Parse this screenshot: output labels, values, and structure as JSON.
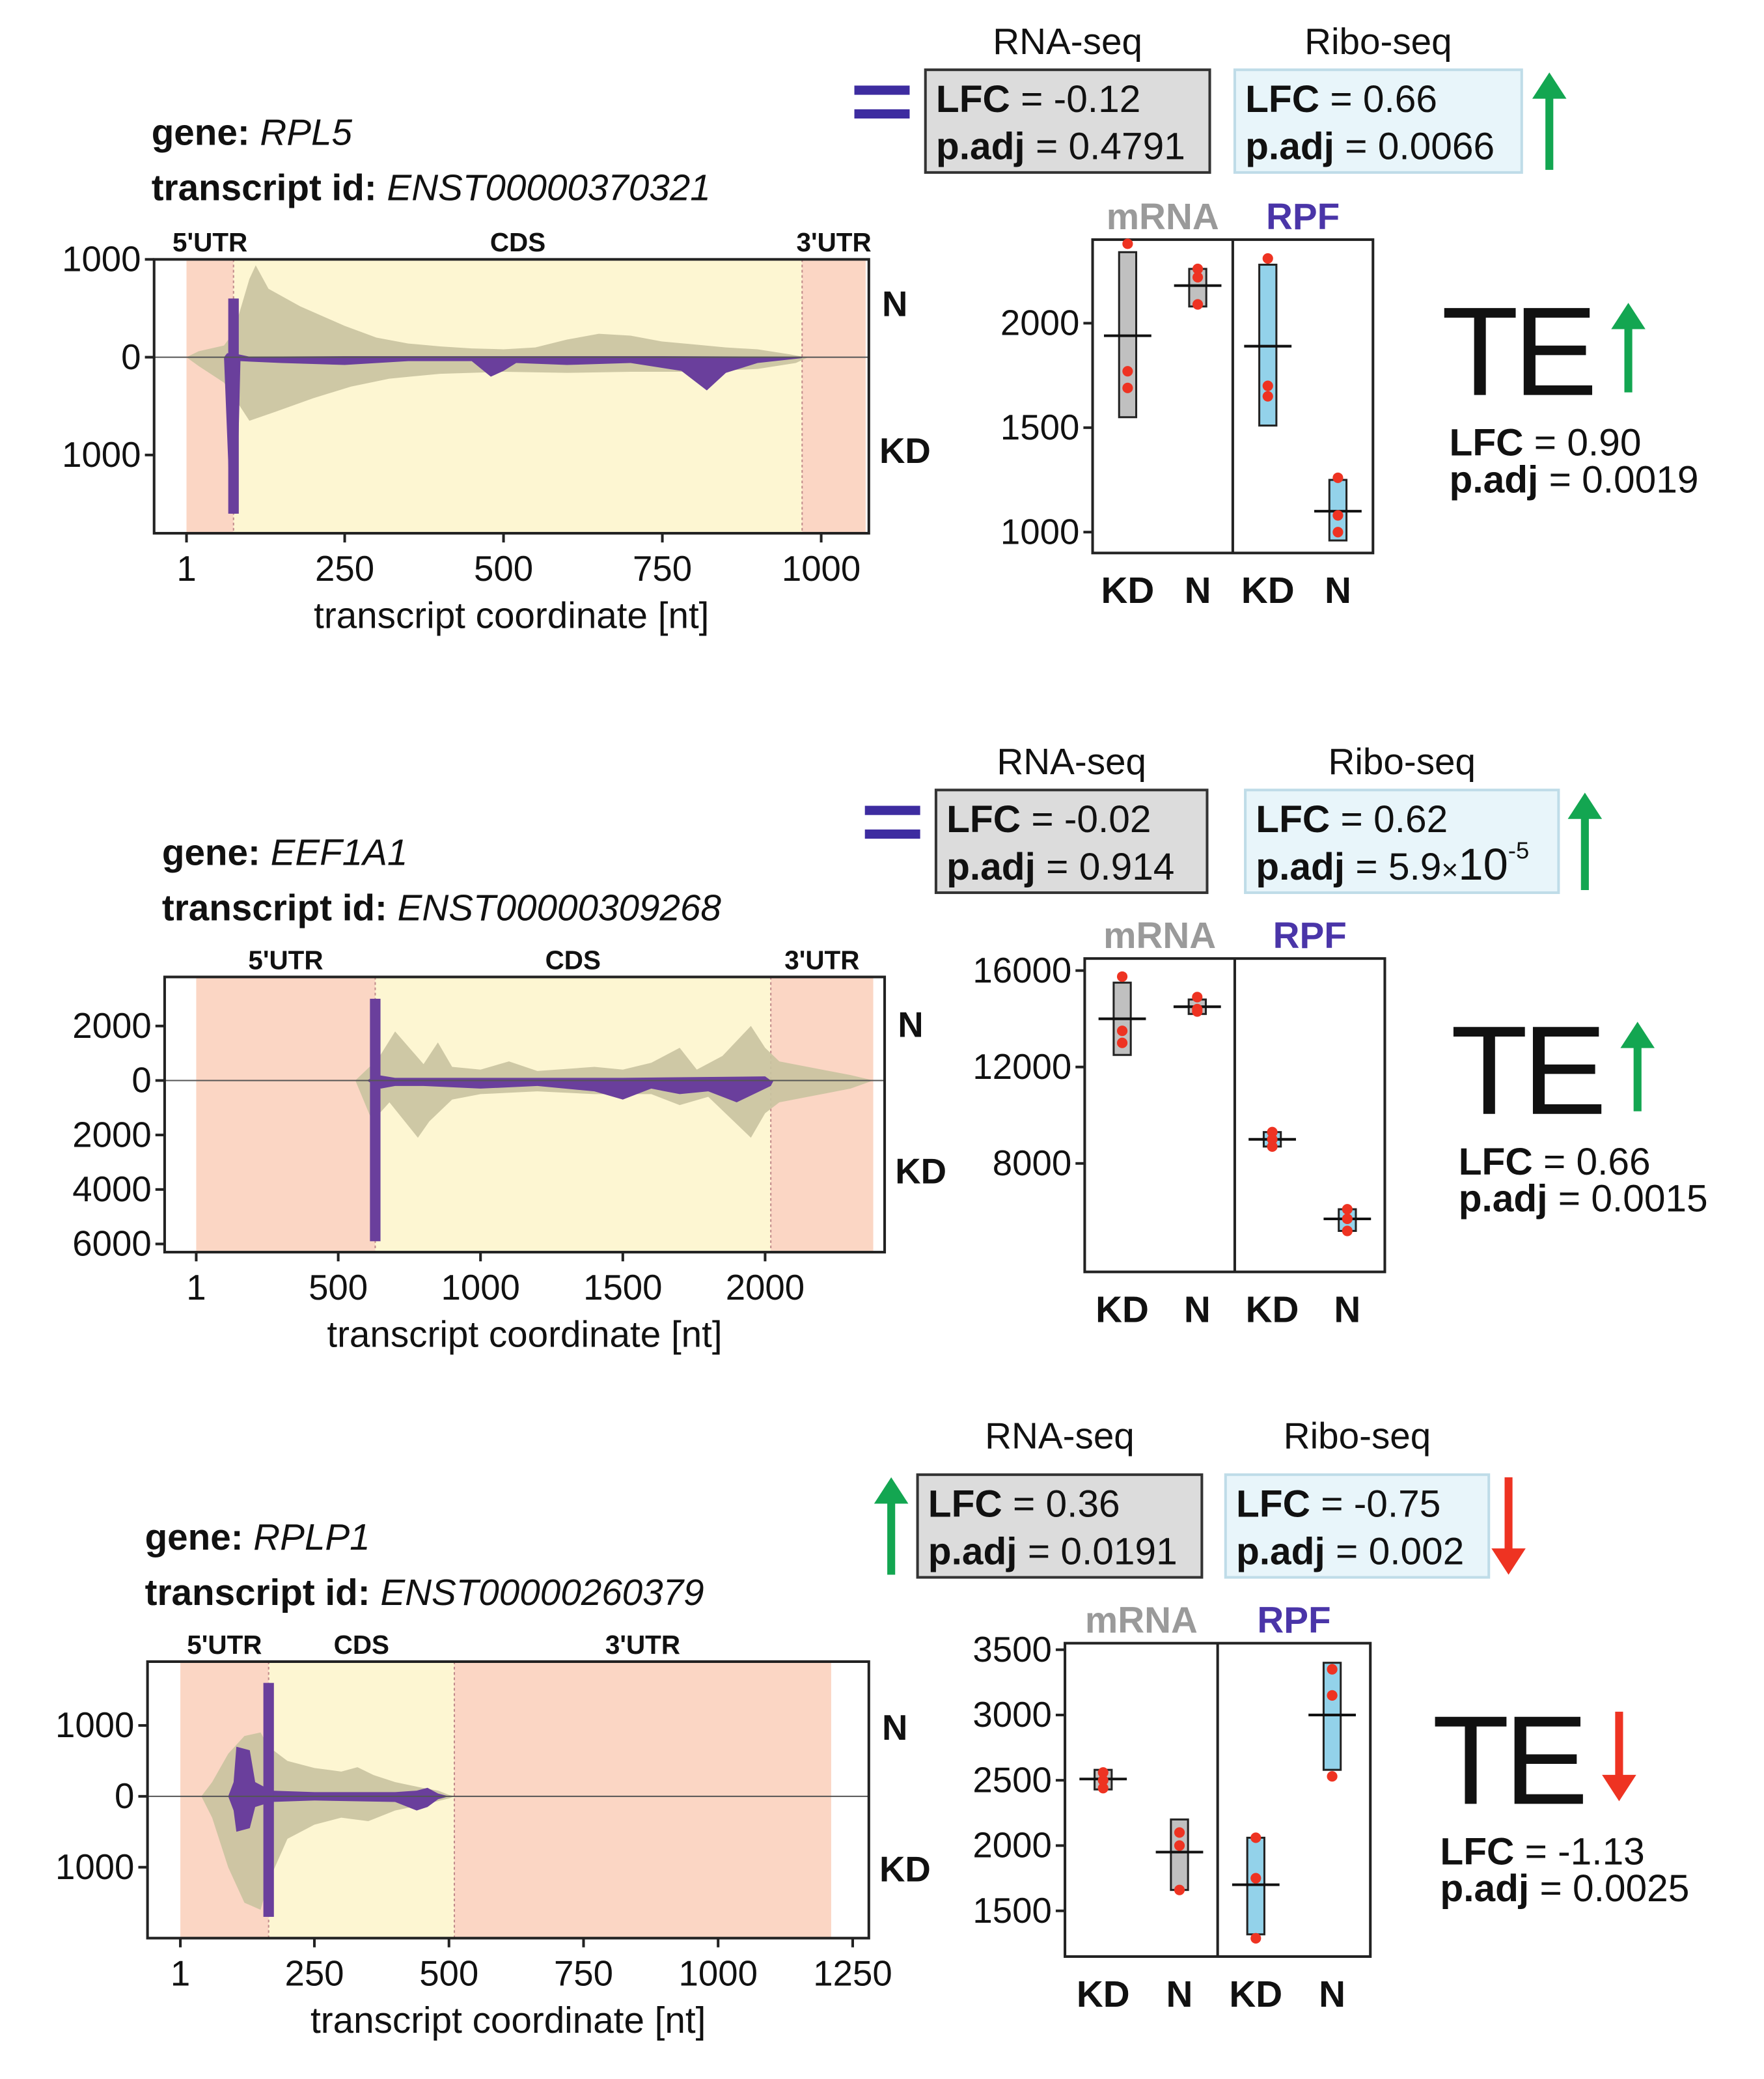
{
  "colors": {
    "utr": "#fbd6c4",
    "cds": "#fdf6d2",
    "rna_profile": "#c9c3a0",
    "utr_profile": "#d4a196",
    "ribo_profile": "#6a3f9c",
    "mrna_box": "#c0c0c0",
    "rpf_box": "#93d2ea",
    "replicate_dot": "#ee3322",
    "up_arrow": "#13a651",
    "down_arrow": "#ee3322",
    "equal_sign": "#3d2ca0",
    "rpf_label": "#4a35a8",
    "mrna_label": "#9a9a9a",
    "rna_stat_box": "#dcdcdc",
    "ribo_stat_box": "#e8f5fa"
  },
  "chart_data": [
    {
      "type": "area",
      "gene_label": "gene:",
      "gene": "RPL5",
      "transcript_label": "transcript id:",
      "transcript": "ENST00000370321",
      "regions": [
        {
          "label": "5'UTR",
          "start": 1,
          "end": 75
        },
        {
          "label": "CDS",
          "start": 75,
          "end": 970
        },
        {
          "label": "3'UTR",
          "start": 970,
          "end": 1070
        }
      ],
      "xlim": [
        -50,
        1075
      ],
      "xticks": [
        1,
        250,
        500,
        750,
        1000
      ],
      "xlabel": "transcript coordinate [nt]",
      "ylim": [
        -1800,
        1000
      ],
      "yticks": [
        {
          "value": 1000,
          "label": "1000"
        },
        {
          "value": 0,
          "label": "0"
        },
        {
          "value": -1000,
          "label": "1000"
        }
      ],
      "top_label": "N",
      "bottom_label": "KD",
      "rna_top": [
        [
          1,
          0
        ],
        [
          20,
          60
        ],
        [
          60,
          120
        ],
        [
          75,
          250
        ],
        [
          100,
          800
        ],
        [
          110,
          940
        ],
        [
          130,
          700
        ],
        [
          180,
          520
        ],
        [
          250,
          320
        ],
        [
          300,
          200
        ],
        [
          350,
          140
        ],
        [
          400,
          110
        ],
        [
          450,
          90
        ],
        [
          500,
          80
        ],
        [
          550,
          100
        ],
        [
          600,
          180
        ],
        [
          650,
          240
        ],
        [
          700,
          220
        ],
        [
          750,
          160
        ],
        [
          800,
          130
        ],
        [
          850,
          100
        ],
        [
          900,
          80
        ],
        [
          950,
          30
        ],
        [
          970,
          5
        ],
        [
          980,
          0
        ]
      ],
      "rna_bottom": [
        [
          1,
          0
        ],
        [
          20,
          -90
        ],
        [
          60,
          -260
        ],
        [
          75,
          -400
        ],
        [
          100,
          -650
        ],
        [
          140,
          -560
        ],
        [
          200,
          -420
        ],
        [
          260,
          -300
        ],
        [
          320,
          -220
        ],
        [
          400,
          -170
        ],
        [
          500,
          -150
        ],
        [
          600,
          -160
        ],
        [
          700,
          -150
        ],
        [
          800,
          -150
        ],
        [
          900,
          -120
        ],
        [
          960,
          -60
        ],
        [
          980,
          0
        ]
      ],
      "ribo_top": [
        [
          60,
          0
        ],
        [
          65,
          40
        ],
        [
          75,
          40
        ],
        [
          100,
          5
        ],
        [
          250,
          10
        ],
        [
          500,
          10
        ],
        [
          750,
          10
        ],
        [
          970,
          5
        ]
      ],
      "ribo_bottom": [
        [
          60,
          0
        ],
        [
          70,
          -1600
        ],
        [
          80,
          -1600
        ],
        [
          86,
          -40
        ],
        [
          150,
          -60
        ],
        [
          250,
          -80
        ],
        [
          350,
          -40
        ],
        [
          450,
          -40
        ],
        [
          480,
          -200
        ],
        [
          500,
          -140
        ],
        [
          520,
          -60
        ],
        [
          600,
          -80
        ],
        [
          700,
          -60
        ],
        [
          780,
          -140
        ],
        [
          820,
          -340
        ],
        [
          850,
          -160
        ],
        [
          900,
          -60
        ],
        [
          970,
          -10
        ]
      ],
      "spike": {
        "x": 75,
        "top": 600,
        "bottom": -1600
      },
      "rna_seq": {
        "title": "RNA-seq",
        "lfc": "-0.12",
        "padj": "0.4791",
        "direction": "equal"
      },
      "ribo_seq": {
        "title": "Ribo-seq",
        "lfc": "0.66",
        "padj": "0.0066",
        "direction": "up"
      },
      "boxes": {
        "ylim": [
          900,
          2400
        ],
        "yticks": [
          1000,
          1500,
          2000
        ],
        "mrna_label": "mRNA",
        "rpf_label": "RPF",
        "groups": [
          {
            "label": "KD",
            "panel": "mRNA",
            "min": 1550,
            "max": 2340,
            "mean": 1940,
            "points": [
              2380,
              1690,
              1770
            ]
          },
          {
            "label": "N",
            "panel": "mRNA",
            "min": 2080,
            "max": 2260,
            "mean": 2180,
            "points": [
              2260,
              2220,
              2090
            ]
          },
          {
            "label": "KD",
            "panel": "RPF",
            "min": 1510,
            "max": 2280,
            "mean": 1890,
            "points": [
              2310,
              1700,
              1650
            ]
          },
          {
            "label": "N",
            "panel": "RPF",
            "min": 960,
            "max": 1250,
            "mean": 1100,
            "points": [
              1260,
              1080,
              1000
            ]
          }
        ]
      },
      "te": {
        "label": "TE",
        "lfc": "0.90",
        "padj": "0.0019",
        "direction": "up"
      }
    },
    {
      "type": "area",
      "gene_label": "gene:",
      "gene": "EEF1A1",
      "transcript_label": "transcript id:",
      "transcript": "ENST00000309268",
      "regions": [
        {
          "label": "5'UTR",
          "start": 1,
          "end": 630
        },
        {
          "label": "CDS",
          "start": 630,
          "end": 2020
        },
        {
          "label": "3'UTR",
          "start": 2020,
          "end": 2380
        }
      ],
      "xlim": [
        -110,
        2420
      ],
      "xticks": [
        1,
        500,
        1000,
        1500,
        2000
      ],
      "xlabel": "transcript coordinate [nt]",
      "ylim": [
        -6300,
        3800
      ],
      "yticks": [
        {
          "value": 2000,
          "label": "2000"
        },
        {
          "value": 0,
          "label": "0"
        },
        {
          "value": -2000,
          "label": "2000"
        },
        {
          "value": -4000,
          "label": "4000"
        },
        {
          "value": -6000,
          "label": "6000"
        }
      ],
      "top_label": "N",
      "bottom_label": "KD",
      "rna_top": [
        [
          560,
          0
        ],
        [
          600,
          400
        ],
        [
          640,
          800
        ],
        [
          700,
          1800
        ],
        [
          750,
          1200
        ],
        [
          800,
          600
        ],
        [
          850,
          1400
        ],
        [
          900,
          500
        ],
        [
          1000,
          400
        ],
        [
          1100,
          700
        ],
        [
          1200,
          350
        ],
        [
          1400,
          500
        ],
        [
          1500,
          400
        ],
        [
          1600,
          650
        ],
        [
          1700,
          1200
        ],
        [
          1760,
          400
        ],
        [
          1850,
          900
        ],
        [
          1950,
          2000
        ],
        [
          2000,
          1200
        ],
        [
          2050,
          700
        ],
        [
          2100,
          600
        ],
        [
          2200,
          400
        ],
        [
          2300,
          200
        ],
        [
          2380,
          0
        ]
      ],
      "rna_bottom": [
        [
          560,
          0
        ],
        [
          620,
          -1500
        ],
        [
          680,
          -800
        ],
        [
          780,
          -2100
        ],
        [
          820,
          -1500
        ],
        [
          900,
          -700
        ],
        [
          1000,
          -500
        ],
        [
          1200,
          -400
        ],
        [
          1400,
          -500
        ],
        [
          1600,
          -500
        ],
        [
          1700,
          -900
        ],
        [
          1800,
          -600
        ],
        [
          1950,
          -2100
        ],
        [
          2000,
          -1200
        ],
        [
          2050,
          -800
        ],
        [
          2200,
          -500
        ],
        [
          2300,
          -300
        ],
        [
          2380,
          0
        ]
      ],
      "ribo_top": [
        [
          600,
          0
        ],
        [
          640,
          200
        ],
        [
          700,
          100
        ],
        [
          1000,
          100
        ],
        [
          1500,
          100
        ],
        [
          2000,
          150
        ],
        [
          2020,
          0
        ]
      ],
      "ribo_bottom": [
        [
          600,
          0
        ],
        [
          650,
          -300
        ],
        [
          700,
          -200
        ],
        [
          800,
          -200
        ],
        [
          1000,
          -300
        ],
        [
          1200,
          -200
        ],
        [
          1400,
          -400
        ],
        [
          1500,
          -700
        ],
        [
          1600,
          -300
        ],
        [
          1700,
          -500
        ],
        [
          1800,
          -400
        ],
        [
          1900,
          -800
        ],
        [
          2020,
          -200
        ],
        [
          2030,
          0
        ]
      ],
      "spike": {
        "x": 630,
        "top": 3000,
        "bottom": -5900
      },
      "rna_seq": {
        "title": "RNA-seq",
        "lfc": "-0.02",
        "padj": "0.914",
        "direction": "equal"
      },
      "ribo_seq": {
        "title": "Ribo-seq",
        "lfc": "0.62",
        "padj": "5.9",
        "padj_times": "×",
        "padj_base": "10",
        "padj_exp": "-5",
        "direction": "up"
      },
      "boxes": {
        "ylim": [
          3500,
          16500
        ],
        "yticks": [
          8000,
          12000,
          16000
        ],
        "mrna_label": "mRNA",
        "rpf_label": "RPF",
        "groups": [
          {
            "label": "KD",
            "panel": "mRNA",
            "min": 12500,
            "max": 15500,
            "mean": 14000,
            "points": [
              15750,
              13500,
              13000
            ]
          },
          {
            "label": "N",
            "panel": "mRNA",
            "min": 14200,
            "max": 14800,
            "mean": 14500,
            "points": [
              14900,
              14400,
              14300
            ]
          },
          {
            "label": "KD",
            "panel": "RPF",
            "min": 8700,
            "max": 9300,
            "mean": 9000,
            "points": [
              9300,
              9000,
              8700
            ]
          },
          {
            "label": "N",
            "panel": "RPF",
            "min": 5200,
            "max": 6100,
            "mean": 5700,
            "points": [
              6100,
              5700,
              5200
            ]
          }
        ]
      },
      "te": {
        "label": "TE",
        "lfc": "0.66",
        "padj": "0.0015",
        "direction": "up"
      }
    },
    {
      "type": "area",
      "gene_label": "gene:",
      "gene": "RPLP1",
      "transcript_label": "transcript id:",
      "transcript": "ENST00000260379",
      "regions": [
        {
          "label": "5'UTR",
          "start": 1,
          "end": 165
        },
        {
          "label": "CDS",
          "start": 165,
          "end": 510
        },
        {
          "label": "3'UTR",
          "start": 510,
          "end": 1210
        }
      ],
      "xlim": [
        -60,
        1280
      ],
      "xticks": [
        1,
        250,
        500,
        750,
        1000,
        1250
      ],
      "xlabel": "transcript coordinate [nt]",
      "ylim": [
        -2000,
        1900
      ],
      "yticks": [
        {
          "value": 1000,
          "label": "1000"
        },
        {
          "value": 0,
          "label": "0"
        },
        {
          "value": -1000,
          "label": "1000"
        }
      ],
      "top_label": "N",
      "bottom_label": "KD",
      "rna_top": [
        [
          40,
          0
        ],
        [
          60,
          200
        ],
        [
          90,
          600
        ],
        [
          120,
          850
        ],
        [
          150,
          900
        ],
        [
          165,
          700
        ],
        [
          200,
          500
        ],
        [
          250,
          400
        ],
        [
          300,
          350
        ],
        [
          330,
          410
        ],
        [
          360,
          300
        ],
        [
          400,
          200
        ],
        [
          450,
          120
        ],
        [
          480,
          80
        ],
        [
          500,
          20
        ],
        [
          510,
          0
        ]
      ],
      "rna_bottom": [
        [
          40,
          0
        ],
        [
          60,
          -300
        ],
        [
          90,
          -1000
        ],
        [
          120,
          -1500
        ],
        [
          150,
          -1600
        ],
        [
          165,
          -1200
        ],
        [
          200,
          -600
        ],
        [
          250,
          -400
        ],
        [
          300,
          -300
        ],
        [
          350,
          -350
        ],
        [
          400,
          -200
        ],
        [
          450,
          -120
        ],
        [
          500,
          -30
        ],
        [
          510,
          0
        ]
      ],
      "ribo_top": [
        [
          90,
          0
        ],
        [
          100,
          200
        ],
        [
          105,
          700
        ],
        [
          130,
          650
        ],
        [
          140,
          200
        ],
        [
          170,
          80
        ],
        [
          250,
          60
        ],
        [
          400,
          60
        ],
        [
          440,
          80
        ],
        [
          460,
          120
        ],
        [
          480,
          40
        ],
        [
          500,
          0
        ]
      ],
      "ribo_bottom": [
        [
          90,
          0
        ],
        [
          100,
          -200
        ],
        [
          105,
          -500
        ],
        [
          130,
          -450
        ],
        [
          140,
          -150
        ],
        [
          170,
          -80
        ],
        [
          250,
          -60
        ],
        [
          400,
          -80
        ],
        [
          440,
          -200
        ],
        [
          460,
          -150
        ],
        [
          480,
          -40
        ],
        [
          500,
          0
        ]
      ],
      "spike": {
        "x": 165,
        "top": 1600,
        "bottom": -1700
      },
      "rna_seq": {
        "title": "RNA-seq",
        "lfc": "0.36",
        "padj": "0.0191",
        "direction": "up"
      },
      "ribo_seq": {
        "title": "Ribo-seq",
        "lfc": "-0.75",
        "padj": "0.002",
        "direction": "down"
      },
      "boxes": {
        "ylim": [
          1150,
          3550
        ],
        "yticks": [
          1500,
          2000,
          2500,
          3000,
          3500
        ],
        "mrna_label": "mRNA",
        "rpf_label": "RPF",
        "groups": [
          {
            "label": "KD",
            "panel": "mRNA",
            "min": 2430,
            "max": 2580,
            "mean": 2510,
            "points": [
              2560,
              2500,
              2440
            ]
          },
          {
            "label": "N",
            "panel": "mRNA",
            "min": 1660,
            "max": 2200,
            "mean": 1950,
            "points": [
              2100,
              2000,
              1660
            ]
          },
          {
            "label": "KD",
            "panel": "RPF",
            "min": 1320,
            "max": 2060,
            "mean": 1700,
            "points": [
              2060,
              1750,
              1290
            ]
          },
          {
            "label": "N",
            "panel": "RPF",
            "min": 2580,
            "max": 3400,
            "mean": 3000,
            "points": [
              3350,
              3150,
              2530
            ]
          }
        ]
      },
      "te": {
        "label": "TE",
        "lfc": "-1.13",
        "padj": "0.0025",
        "direction": "down"
      }
    }
  ]
}
